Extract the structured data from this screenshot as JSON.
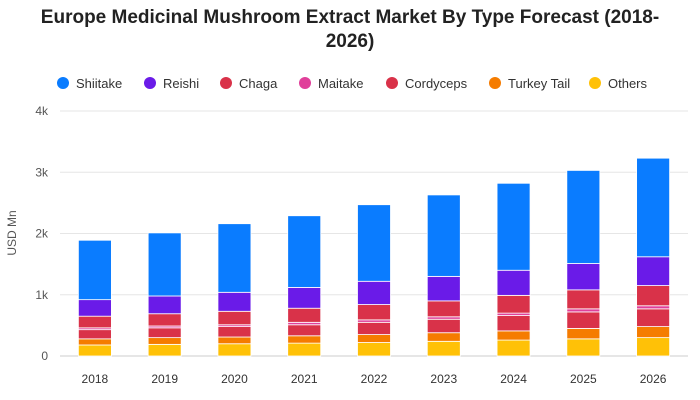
{
  "chart_data": {
    "type": "bar",
    "stacked": true,
    "title_line1": "Europe Medicinal Mushroom Extract Market By Type Forecast (2018-",
    "title_line2": "2026)",
    "xlabel": "",
    "ylabel": "USD Mn",
    "ylim": [
      0,
      4000
    ],
    "yticks": [
      0,
      1000,
      2000,
      3000,
      4000
    ],
    "ytick_labels": [
      "0",
      "1k",
      "2k",
      "3k",
      "4k"
    ],
    "grid": true,
    "legend_position": "top",
    "categories": [
      "2018",
      "2019",
      "2020",
      "2021",
      "2022",
      "2023",
      "2024",
      "2025",
      "2026"
    ],
    "series": [
      {
        "name": "Others",
        "color": "#FFC107",
        "values": [
          180,
          190,
          200,
          210,
          220,
          240,
          260,
          280,
          300
        ]
      },
      {
        "name": "Turkey Tail",
        "color": "#F57C00",
        "values": [
          100,
          110,
          110,
          120,
          130,
          140,
          150,
          170,
          180
        ]
      },
      {
        "name": "Cordyceps",
        "color": "#D93249",
        "values": [
          150,
          160,
          170,
          180,
          200,
          220,
          250,
          270,
          290
        ]
      },
      {
        "name": "Maitake",
        "color": "#E0409A",
        "values": [
          30,
          30,
          30,
          40,
          40,
          40,
          40,
          50,
          50
        ]
      },
      {
        "name": "Chaga",
        "color": "#D93249",
        "values": [
          190,
          200,
          220,
          230,
          250,
          260,
          290,
          310,
          330
        ]
      },
      {
        "name": "Reishi",
        "color": "#6A1BE8",
        "values": [
          270,
          290,
          310,
          340,
          380,
          400,
          410,
          430,
          470
        ]
      },
      {
        "name": "Shiitake",
        "color": "#0A7CFF",
        "values": [
          970,
          1030,
          1120,
          1170,
          1250,
          1330,
          1420,
          1520,
          1610
        ]
      }
    ],
    "legend_order": [
      "Shiitake",
      "Reishi",
      "Chaga",
      "Maitake",
      "Cordyceps",
      "Turkey Tail",
      "Others"
    ]
  }
}
